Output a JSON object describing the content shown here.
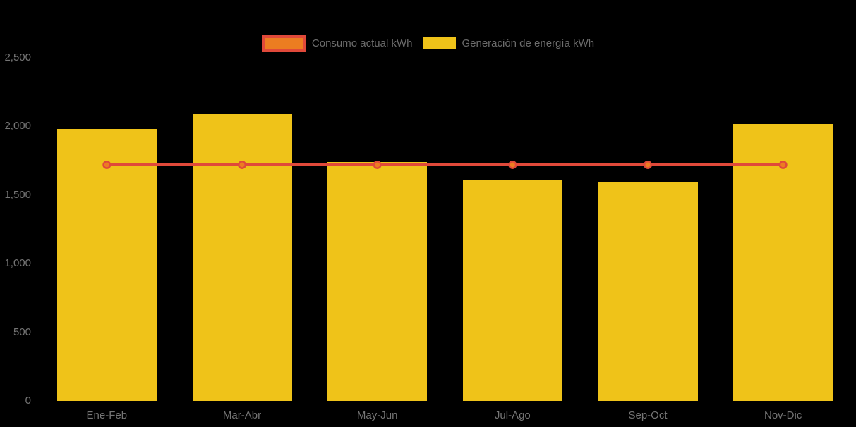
{
  "chart_data": {
    "type": "bar+line",
    "title": "",
    "categories": [
      "Ene-Feb",
      "Mar-Abr",
      "May-Jun",
      "Jul-Ago",
      "Sep-Oct",
      "Nov-Dic"
    ],
    "series": [
      {
        "name": "Consumo actual kWh",
        "type": "line",
        "values": [
          1720,
          1720,
          1720,
          1720,
          1720,
          1720
        ],
        "line_color": "#E0493A",
        "marker_fill": "#EC7D21",
        "marker_stroke": "#E0493A"
      },
      {
        "name": "Generación de energía kWh",
        "type": "bar",
        "values": [
          1980,
          2090,
          1740,
          1610,
          1590,
          2020
        ],
        "color": "#EFC319"
      }
    ],
    "xlabel": "",
    "ylabel": "",
    "ylim": [
      0,
      2500
    ],
    "ytick_labels": [
      "0",
      "500",
      "1,000",
      "1,500",
      "2,000",
      "2,500"
    ],
    "ytick_values": [
      0,
      500,
      1000,
      1500,
      2000,
      2500
    ],
    "grid": false,
    "legend_position": "top",
    "background_color": "#000000",
    "axis_label_color": "#757575",
    "legend_text_color": "#6C6C6C"
  }
}
